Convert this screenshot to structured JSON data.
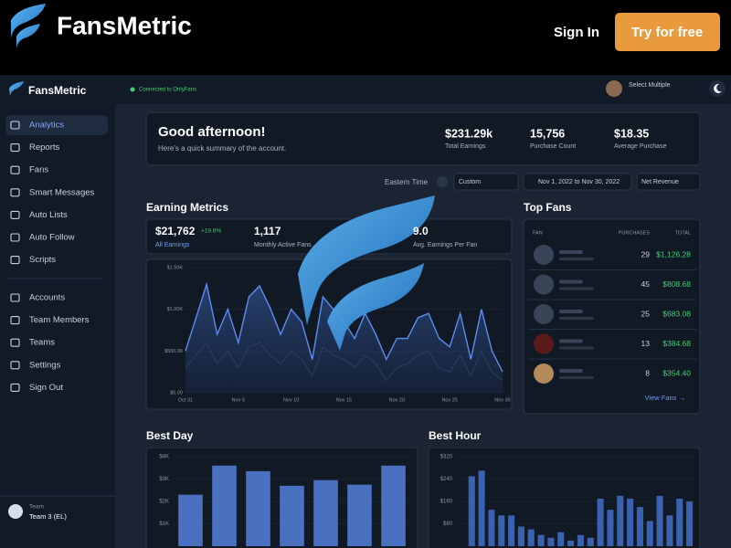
{
  "header": {
    "brand": "FansMetric",
    "sign_in": "Sign In",
    "cta": "Try for free"
  },
  "app": {
    "brand": "FansMetric",
    "status": "Connected to OnlyFans",
    "account_selector": "Select Multiple",
    "sidebar": {
      "main": [
        "Analytics",
        "Reports",
        "Fans",
        "Smart Messages",
        "Auto Lists",
        "Auto Follow",
        "Scripts"
      ],
      "settings": [
        "Accounts",
        "Team Members",
        "Teams",
        "Settings",
        "Sign Out"
      ],
      "team_label": "Team",
      "team_name": "Team 3 (EL)"
    },
    "summary": {
      "greeting": "Good afternoon!",
      "subtitle": "Here's a quick summary of the account.",
      "stats": [
        {
          "value": "$231.29k",
          "label": "Total Earnings"
        },
        {
          "value": "15,756",
          "label": "Purchase Count"
        },
        {
          "value": "$18.35",
          "label": "Average Purchase"
        }
      ]
    },
    "filters": {
      "timezone": "Eastern Time",
      "range_type": "Custom",
      "date_range": "Nov 1, 2022 to Nov 30, 2022",
      "metric": "Net Revenue"
    },
    "earning_metrics": {
      "title": "Earning Metrics",
      "kpis": [
        {
          "value": "$21,762",
          "change": "+19.8%",
          "label": "All Earnings"
        },
        {
          "value": "1,117",
          "label": "Monthly Active Fans"
        },
        {
          "value": "9.0",
          "label": "Avg. Earnings Per Fan"
        }
      ],
      "chart": {
        "type": "line",
        "categories": [
          "Oct 31",
          null,
          null,
          null,
          null,
          "Nov 5",
          null,
          null,
          null,
          null,
          "Nov 10",
          null,
          null,
          null,
          null,
          "Nov 15",
          null,
          null,
          null,
          null,
          "Nov 20",
          null,
          null,
          null,
          null,
          "Nov 25",
          null,
          null,
          null,
          null,
          "Nov 30"
        ],
        "series": [
          {
            "color": "#5b8def",
            "values": [
              500,
              900,
              1300,
              700,
              1000,
              600,
              1150,
              1280,
              1020,
              700,
              1000,
              850,
              400,
              1150,
              1000,
              850,
              650,
              950,
              700,
              400,
              650,
              650,
              900,
              950,
              650,
              550,
              950,
              400,
              1000,
              500,
              250
            ]
          },
          {
            "color": "#3b4a66",
            "values": [
              300,
              450,
              600,
              350,
              500,
              300,
              550,
              600,
              450,
              350,
              500,
              400,
              200,
              550,
              450,
              400,
              300,
              450,
              350,
              150,
              300,
              350,
              450,
              500,
              300,
              250,
              450,
              200,
              500,
              250,
              150
            ]
          }
        ],
        "ylim": [
          0,
          1500
        ],
        "yticks": [
          {
            "value": 0,
            "label": "$0.00"
          },
          {
            "value": 500,
            "label": "$500.00"
          },
          {
            "value": 1000,
            "label": "$1.00K"
          },
          {
            "value": 1500,
            "label": "$1.50K"
          }
        ]
      }
    },
    "top_fans": {
      "title": "Top Fans",
      "columns": [
        "FAN",
        "PURCHASES",
        "TOTAL"
      ],
      "rows": [
        {
          "purchases": 29,
          "total": "$1,126.28"
        },
        {
          "purchases": 45,
          "total": "$808.68"
        },
        {
          "purchases": 25,
          "total": "$683.08"
        },
        {
          "purchases": 13,
          "total": "$384.68"
        },
        {
          "purchases": 8,
          "total": "$354.40"
        }
      ],
      "link": "View Fans →"
    },
    "best_day": {
      "title": "Best Day",
      "chart": {
        "type": "bar",
        "color": "#4a70c0",
        "values": [
          2300,
          3600,
          3350,
          2700,
          2950,
          2750,
          3600
        ],
        "ylim": [
          0,
          4000
        ],
        "yticks": [
          {
            "value": 1000,
            "label": "$1K"
          },
          {
            "value": 2000,
            "label": "$2K"
          },
          {
            "value": 3000,
            "label": "$3K"
          },
          {
            "value": 4000,
            "label": "$4K"
          }
        ]
      }
    },
    "best_hour": {
      "title": "Best Hour",
      "chart": {
        "type": "bar",
        "color": "#3b62b0",
        "values": [
          0,
          250,
          270,
          130,
          110,
          110,
          70,
          60,
          40,
          30,
          50,
          20,
          40,
          30,
          170,
          130,
          180,
          170,
          140,
          90,
          180,
          110,
          170,
          160
        ],
        "ylim": [
          0,
          320
        ],
        "yticks": [
          {
            "value": 80,
            "label": "$80"
          },
          {
            "value": 160,
            "label": "$160"
          },
          {
            "value": 240,
            "label": "$240"
          },
          {
            "value": 320,
            "label": "$320"
          }
        ]
      }
    }
  }
}
